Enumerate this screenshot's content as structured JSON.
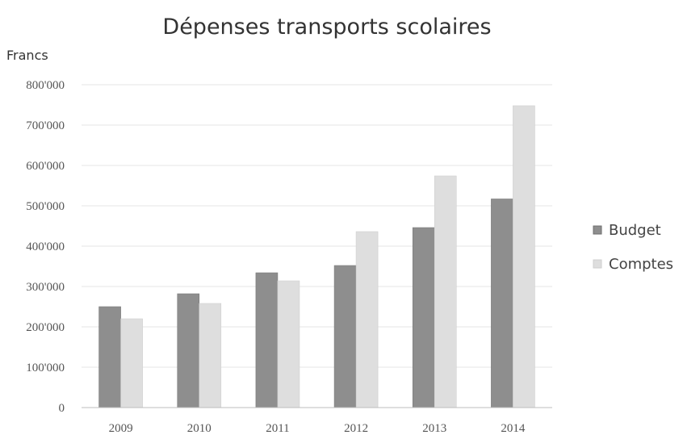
{
  "chart_data": {
    "type": "bar",
    "title": "Dépenses transports scolaires",
    "ylabel": "Francs",
    "xlabel": "",
    "categories": [
      "2009",
      "2010",
      "2011",
      "2012",
      "2013",
      "2014"
    ],
    "series": [
      {
        "name": "Budget",
        "values": [
          250000,
          282000,
          334000,
          352000,
          446000,
          517000
        ],
        "color": "#8e8e8e"
      },
      {
        "name": "Comptes",
        "values": [
          220000,
          258000,
          314000,
          436000,
          574000,
          748000
        ],
        "color": "#dedede"
      }
    ],
    "ylim": [
      0,
      800000
    ],
    "yticks": [
      0,
      100000,
      200000,
      300000,
      400000,
      500000,
      600000,
      700000,
      800000
    ],
    "ytick_labels": [
      "0",
      "100'000",
      "200'000",
      "300'000",
      "400'000",
      "500'000",
      "600'000",
      "700'000",
      "800'000"
    ],
    "grid": true,
    "legend_position": "right"
  }
}
